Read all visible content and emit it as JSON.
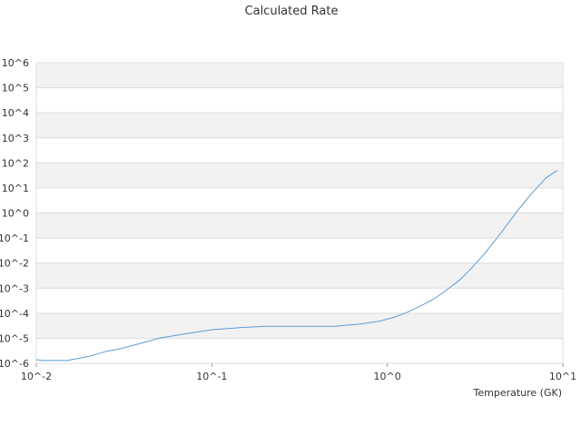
{
  "chart_data": {
    "type": "line",
    "title": "Calculated Rate",
    "xlabel": "Temperature (GK)",
    "ylabel": "",
    "x_scale": "log",
    "y_scale": "log",
    "xlim": [
      0.01,
      10
    ],
    "ylim": [
      1e-06,
      1000000.0
    ],
    "x_ticks": [
      {
        "value": 0.01,
        "label": "10^-2"
      },
      {
        "value": 0.1,
        "label": "10^-1"
      },
      {
        "value": 1,
        "label": "10^0"
      },
      {
        "value": 10,
        "label": "10^1"
      }
    ],
    "y_ticks": [
      {
        "value": 1e-06,
        "label": "10^-6"
      },
      {
        "value": 1e-05,
        "label": "10^-5"
      },
      {
        "value": 0.0001,
        "label": "10^-4"
      },
      {
        "value": 0.001,
        "label": "10^-3"
      },
      {
        "value": 0.01,
        "label": "10^-2"
      },
      {
        "value": 0.1,
        "label": "10^-1"
      },
      {
        "value": 1,
        "label": "10^0"
      },
      {
        "value": 10,
        "label": "10^1"
      },
      {
        "value": 100,
        "label": "10^2"
      },
      {
        "value": 1000,
        "label": "10^3"
      },
      {
        "value": 10000,
        "label": "10^4"
      },
      {
        "value": 100000,
        "label": "10^5"
      },
      {
        "value": 1000000,
        "label": "10^6"
      }
    ],
    "grid": "horizontal alternating bands",
    "legend": "none",
    "series": [
      {
        "color": "#5b9bd5",
        "x": [
          0.01,
          0.011,
          0.012,
          0.015,
          0.02,
          0.025,
          0.03,
          0.04,
          0.05,
          0.07,
          0.1,
          0.15,
          0.2,
          0.3,
          0.5,
          0.7,
          0.9,
          1.1,
          1.3,
          1.6,
          1.9,
          2.2,
          2.6,
          3.0,
          3.6,
          4.5,
          5.5,
          6.5,
          8.0,
          9.3
        ],
        "y": [
          1.4e-06,
          1.3e-06,
          1.3e-06,
          1.3e-06,
          1.9e-06,
          3e-06,
          3.8e-06,
          6.5e-06,
          1e-05,
          1.5e-05,
          2.2e-05,
          2.7e-05,
          3e-05,
          3e-05,
          3e-05,
          3.7e-05,
          4.8e-05,
          7e-05,
          0.00011,
          0.00022,
          0.00043,
          0.0009,
          0.0022,
          0.006,
          0.025,
          0.18,
          1.2,
          5.0,
          25,
          50
        ]
      }
    ]
  }
}
